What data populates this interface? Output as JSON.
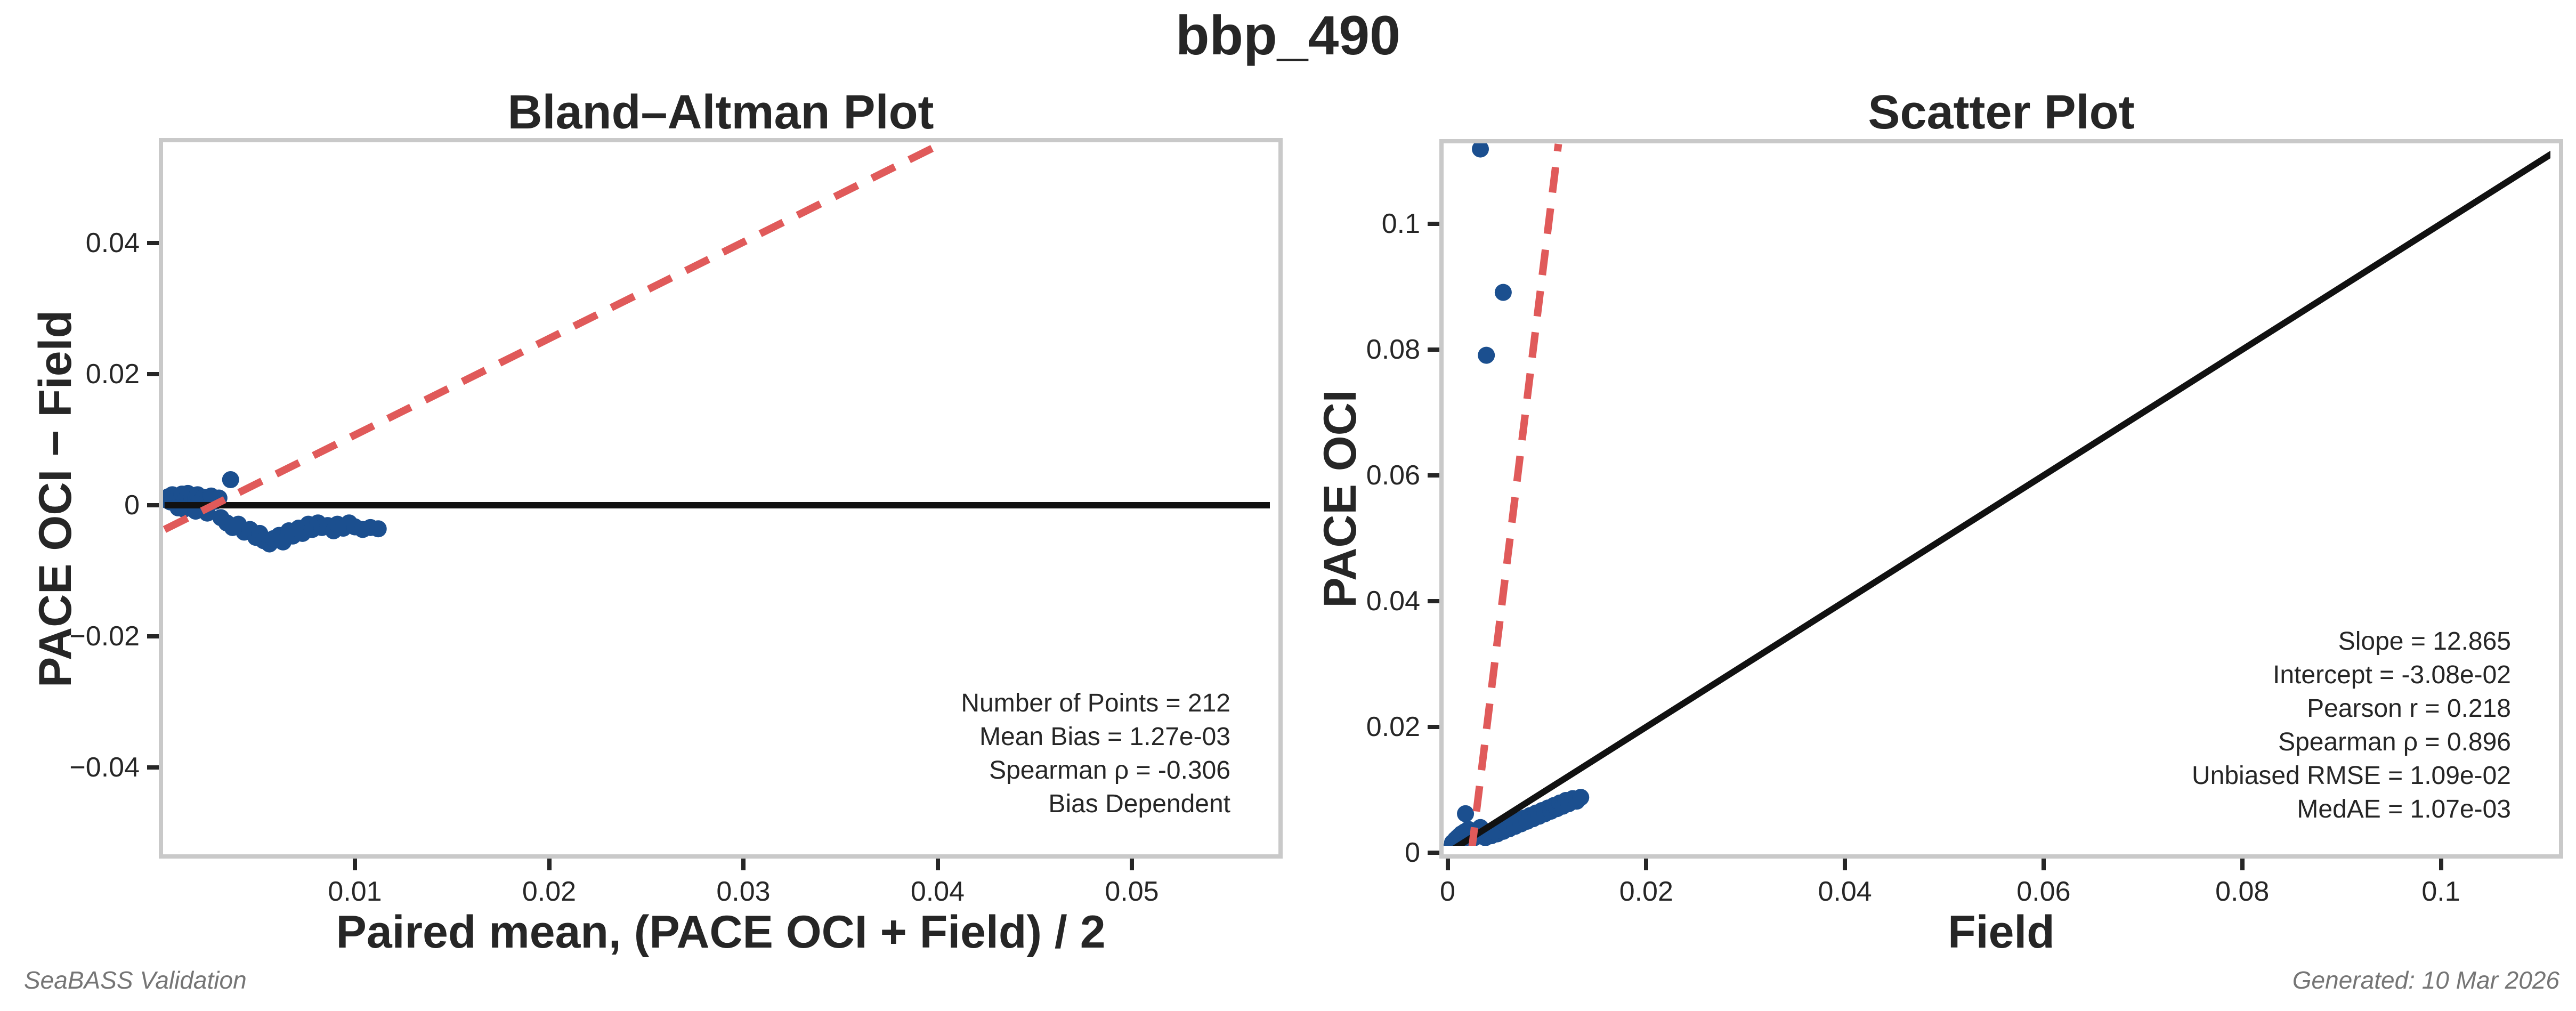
{
  "page": {
    "title": "bbp_490",
    "footer_left": "SeaBASS Validation",
    "footer_right": "Generated: 10 Mar 2026"
  },
  "colors": {
    "point_blue": "#1b4f8f",
    "line_red": "#e05a5a",
    "line_black": "#111111",
    "panel_border_gray": "#c9c9c9",
    "text_dark": "#262626",
    "footer_gray": "#757575"
  },
  "chart_data": [
    {
      "id": "bland_altman",
      "type": "scatter",
      "title": "Bland–Altman Plot",
      "xlabel": "Paired mean, (PACE OCI + Field) / 2",
      "ylabel": "PACE OCI − Field",
      "xlim": [
        0.0002,
        0.0575
      ],
      "ylim": [
        -0.0532,
        0.0553
      ],
      "grid": false,
      "x_ticks": {
        "values": [
          0.01,
          0.02,
          0.03,
          0.04,
          0.05
        ],
        "labels": [
          "0.01",
          "0.02",
          "0.03",
          "0.04",
          "0.05"
        ]
      },
      "y_ticks": {
        "values": [
          -0.04,
          -0.02,
          0,
          0.02,
          0.04
        ],
        "labels": [
          "−0.04",
          "−0.02",
          "0",
          "0.02",
          "0.04"
        ]
      },
      "lines": [
        {
          "name": "zero-bias-line",
          "style": "solid",
          "color_key": "line_black",
          "from": [
            0.0002,
            0
          ],
          "to": [
            0.0575,
            0
          ]
        },
        {
          "name": "bias-trend-line",
          "style": "dashed",
          "color_key": "line_red",
          "from": [
            0.0002,
            -0.0037
          ],
          "to": [
            0.0403,
            0.0553
          ]
        }
      ],
      "stats": [
        "Number of Points = 212",
        "Mean Bias = 1.27e-03",
        "Spearman ρ = -0.306",
        "Bias Dependent"
      ],
      "points": [
        [
          0.0003,
          0.0008
        ],
        [
          0.0004,
          0.0013
        ],
        [
          0.0005,
          0.0005
        ],
        [
          0.0006,
          0.0016
        ],
        [
          0.0007,
          0.0009
        ],
        [
          0.0008,
          0.0003
        ],
        [
          0.0009,
          0.0014
        ],
        [
          0.001,
          0.0007
        ],
        [
          0.0011,
          0.0017
        ],
        [
          0.0012,
          0.0004
        ],
        [
          0.0013,
          0.0011
        ],
        [
          0.0014,
          0.0018
        ],
        [
          0.0015,
          0.0006
        ],
        [
          0.0016,
          0.0013
        ],
        [
          0.0017,
          0.0002
        ],
        [
          0.0018,
          0.001
        ],
        [
          0.0019,
          0.0016
        ],
        [
          0.002,
          0.0005
        ],
        [
          0.0022,
          0.0012
        ],
        [
          0.0024,
          0.0008
        ],
        [
          0.0026,
          0.0014
        ],
        [
          0.0028,
          0.0006
        ],
        [
          0.003,
          0.0011
        ],
        [
          0.0009,
          -0.0004
        ],
        [
          0.0012,
          -0.0006
        ],
        [
          0.0018,
          -0.0009
        ],
        [
          0.0024,
          -0.0012
        ],
        [
          0.0036,
          0.0039
        ],
        [
          0.0031,
          -0.0019
        ],
        [
          0.0034,
          -0.0027
        ],
        [
          0.0037,
          -0.0034
        ],
        [
          0.004,
          -0.0029
        ],
        [
          0.0043,
          -0.0041
        ],
        [
          0.0046,
          -0.0037
        ],
        [
          0.0049,
          -0.0049
        ],
        [
          0.0051,
          -0.0043
        ],
        [
          0.0053,
          -0.0054
        ],
        [
          0.0056,
          -0.0059
        ],
        [
          0.0058,
          -0.0051
        ],
        [
          0.0061,
          -0.0046
        ],
        [
          0.0063,
          -0.0056
        ],
        [
          0.0066,
          -0.0039
        ],
        [
          0.0068,
          -0.0047
        ],
        [
          0.0071,
          -0.0035
        ],
        [
          0.0073,
          -0.0043
        ],
        [
          0.0076,
          -0.0029
        ],
        [
          0.0078,
          -0.0037
        ],
        [
          0.0081,
          -0.0027
        ],
        [
          0.0083,
          -0.0034
        ],
        [
          0.0086,
          -0.0031
        ],
        [
          0.0089,
          -0.0039
        ],
        [
          0.0091,
          -0.0029
        ],
        [
          0.0094,
          -0.0035
        ],
        [
          0.0097,
          -0.0027
        ],
        [
          0.01,
          -0.0033
        ],
        [
          0.0104,
          -0.0037
        ],
        [
          0.0108,
          -0.0034
        ],
        [
          0.0112,
          -0.0036
        ]
      ]
    },
    {
      "id": "scatter",
      "type": "scatter",
      "title": "Scatter Plot",
      "xlabel": "Field",
      "ylabel": "PACE OCI",
      "xlim": [
        -0.0004,
        0.1118
      ],
      "ylim": [
        -0.0002,
        0.1127
      ],
      "grid": false,
      "x_ticks": {
        "values": [
          0,
          0.02,
          0.04,
          0.06,
          0.08,
          0.1
        ],
        "labels": [
          "0",
          "0.02",
          "0.04",
          "0.06",
          "0.08",
          "0.1"
        ]
      },
      "y_ticks": {
        "values": [
          0,
          0.02,
          0.04,
          0.06,
          0.08,
          0.1
        ],
        "labels": [
          "0",
          "0.02",
          "0.04",
          "0.06",
          "0.08",
          "0.1"
        ]
      },
      "lines": [
        {
          "name": "identity-line",
          "style": "solid",
          "color_key": "line_black",
          "from": [
            0,
            0
          ],
          "to": [
            0.1118,
            0.1118
          ]
        },
        {
          "name": "regression-line",
          "style": "dashed",
          "color_key": "line_red",
          "from": [
            0.002394,
            0
          ],
          "to": [
            0.011155,
            0.1127
          ],
          "slope": 12.865,
          "intercept": -0.0308
        }
      ],
      "stats": [
        "Slope = 12.865",
        "Intercept = -3.08e-02",
        "Pearson r = 0.218",
        "Spearman ρ = 0.896",
        "Unbiased RMSE = 1.09e-02",
        "MedAE = 1.07e-03"
      ],
      "points": [
        [
          0.0004,
          0.0009
        ],
        [
          0.0005,
          0.0016
        ],
        [
          0.0007,
          0.0011
        ],
        [
          0.0008,
          0.0021
        ],
        [
          0.0009,
          0.0006
        ],
        [
          0.001,
          0.0024
        ],
        [
          0.0011,
          0.0014
        ],
        [
          0.0012,
          0.0027
        ],
        [
          0.0013,
          0.0018
        ],
        [
          0.0014,
          0.003
        ],
        [
          0.0015,
          0.001
        ],
        [
          0.0016,
          0.0023
        ],
        [
          0.0017,
          0.0033
        ],
        [
          0.0018,
          0.0062
        ],
        [
          0.0019,
          0.0015
        ],
        [
          0.002,
          0.0027
        ],
        [
          0.0021,
          0.0037
        ],
        [
          0.0023,
          0.002
        ],
        [
          0.0025,
          0.0031
        ],
        [
          0.0027,
          0.0024
        ],
        [
          0.0029,
          0.0035
        ],
        [
          0.0031,
          0.0028
        ],
        [
          0.0033,
          0.004
        ],
        [
          0.0038,
          0.0024
        ],
        [
          0.0041,
          0.0031
        ],
        [
          0.0044,
          0.0027
        ],
        [
          0.0047,
          0.0035
        ],
        [
          0.005,
          0.003
        ],
        [
          0.0053,
          0.0039
        ],
        [
          0.0056,
          0.0034
        ],
        [
          0.0059,
          0.0043
        ],
        [
          0.0062,
          0.0038
        ],
        [
          0.0065,
          0.0047
        ],
        [
          0.0068,
          0.0042
        ],
        [
          0.0071,
          0.0051
        ],
        [
          0.0074,
          0.0046
        ],
        [
          0.0077,
          0.0055
        ],
        [
          0.008,
          0.005
        ],
        [
          0.0083,
          0.0059
        ],
        [
          0.0086,
          0.0054
        ],
        [
          0.0089,
          0.0063
        ],
        [
          0.0092,
          0.0058
        ],
        [
          0.0095,
          0.0067
        ],
        [
          0.0098,
          0.0062
        ],
        [
          0.0101,
          0.0071
        ],
        [
          0.0104,
          0.0066
        ],
        [
          0.0107,
          0.0075
        ],
        [
          0.011,
          0.007
        ],
        [
          0.0113,
          0.0079
        ],
        [
          0.0116,
          0.0074
        ],
        [
          0.0119,
          0.0083
        ],
        [
          0.0122,
          0.0078
        ],
        [
          0.0126,
          0.0086
        ],
        [
          0.013,
          0.0082
        ],
        [
          0.0134,
          0.0088
        ],
        [
          0.0033,
          0.1119
        ],
        [
          0.0056,
          0.0891
        ],
        [
          0.0039,
          0.0791
        ]
      ]
    }
  ]
}
